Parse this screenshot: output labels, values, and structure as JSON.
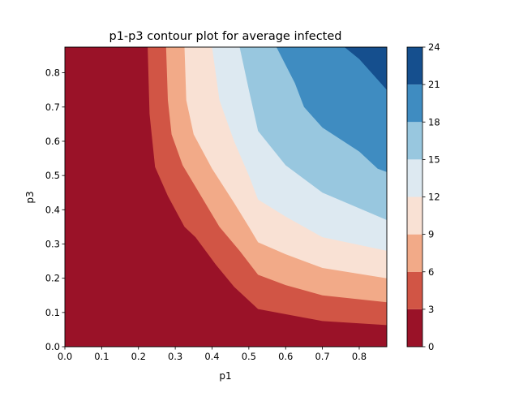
{
  "chart_data": {
    "type": "contour",
    "title": "p1-p3 contour plot for average infected",
    "xlabel": "p1",
    "ylabel": "p3",
    "xlim": [
      0,
      0.875
    ],
    "ylim": [
      0,
      0.875
    ],
    "x_ticks": [
      "0.0",
      "0.1",
      "0.2",
      "0.3",
      "0.4",
      "0.5",
      "0.6",
      "0.7",
      "0.8"
    ],
    "y_ticks": [
      "0.0",
      "0.1",
      "0.2",
      "0.3",
      "0.4",
      "0.5",
      "0.6",
      "0.7",
      "0.8"
    ],
    "colormap": "RdBu",
    "levels": [
      0,
      3,
      6,
      9,
      12,
      15,
      18,
      21,
      24
    ],
    "colorbar_ticks": [
      "0",
      "3",
      "6",
      "9",
      "12",
      "15",
      "18",
      "21",
      "24"
    ],
    "band_colors": [
      "#9a1228",
      "#d15545",
      "#f2aa88",
      "#f9e1d4",
      "#dde9f1",
      "#98c7df",
      "#3f8cc1",
      "#154f8e"
    ],
    "contour_lines": [
      {
        "level": 3,
        "points": [
          [
            0.225,
            0.875
          ],
          [
            0.23,
            0.68
          ],
          [
            0.245,
            0.525
          ],
          [
            0.28,
            0.44
          ],
          [
            0.325,
            0.35
          ],
          [
            0.355,
            0.32
          ],
          [
            0.41,
            0.24
          ],
          [
            0.46,
            0.175
          ],
          [
            0.525,
            0.11
          ],
          [
            0.7,
            0.075
          ],
          [
            0.875,
            0.063
          ]
        ]
      },
      {
        "level": 6,
        "points": [
          [
            0.275,
            0.875
          ],
          [
            0.28,
            0.72
          ],
          [
            0.29,
            0.62
          ],
          [
            0.32,
            0.53
          ],
          [
            0.37,
            0.44
          ],
          [
            0.42,
            0.35
          ],
          [
            0.475,
            0.28
          ],
          [
            0.525,
            0.21
          ],
          [
            0.6,
            0.18
          ],
          [
            0.7,
            0.15
          ],
          [
            0.875,
            0.13
          ]
        ]
      },
      {
        "level": 9,
        "points": [
          [
            0.325,
            0.875
          ],
          [
            0.33,
            0.72
          ],
          [
            0.35,
            0.62
          ],
          [
            0.4,
            0.52
          ],
          [
            0.46,
            0.42
          ],
          [
            0.5,
            0.35
          ],
          [
            0.525,
            0.305
          ],
          [
            0.6,
            0.27
          ],
          [
            0.7,
            0.23
          ],
          [
            0.875,
            0.2
          ]
        ]
      },
      {
        "level": 12,
        "points": [
          [
            0.4,
            0.875
          ],
          [
            0.42,
            0.72
          ],
          [
            0.46,
            0.6
          ],
          [
            0.5,
            0.5
          ],
          [
            0.525,
            0.43
          ],
          [
            0.6,
            0.38
          ],
          [
            0.7,
            0.32
          ],
          [
            0.875,
            0.28
          ]
        ]
      },
      {
        "level": 15,
        "points": [
          [
            0.475,
            0.875
          ],
          [
            0.5,
            0.75
          ],
          [
            0.525,
            0.63
          ],
          [
            0.6,
            0.53
          ],
          [
            0.7,
            0.45
          ],
          [
            0.875,
            0.37
          ]
        ]
      },
      {
        "level": 18,
        "points": [
          [
            0.575,
            0.875
          ],
          [
            0.625,
            0.77
          ],
          [
            0.65,
            0.7
          ],
          [
            0.7,
            0.64
          ],
          [
            0.8,
            0.57
          ],
          [
            0.85,
            0.52
          ],
          [
            0.875,
            0.51
          ]
        ]
      },
      {
        "level": 21,
        "points": [
          [
            0.76,
            0.875
          ],
          [
            0.8,
            0.84
          ],
          [
            0.875,
            0.75
          ]
        ]
      }
    ]
  }
}
